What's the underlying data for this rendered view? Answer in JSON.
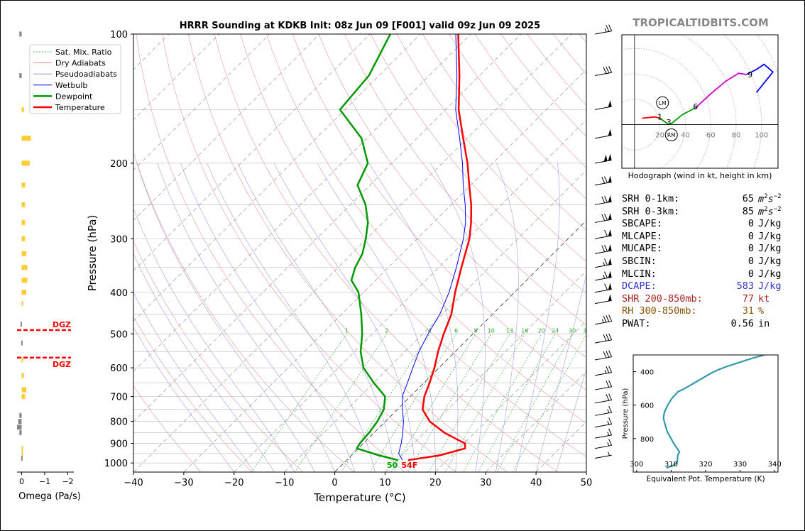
{
  "chart_data": [
    {
      "type": "line",
      "title": "HRRR Sounding at KDKB Init: 08z Jun 09 [F001] valid 09z Jun 09 2025",
      "xlabel": "Temperature (°C)",
      "ylabel": "Pressure (hPa)",
      "xlim": [
        -40,
        50
      ],
      "ylim": [
        1050,
        100
      ],
      "yscale": "log",
      "xticks": [
        -40,
        -30,
        -20,
        -10,
        0,
        10,
        20,
        30,
        40,
        50
      ],
      "yticks": [
        100,
        200,
        300,
        400,
        500,
        600,
        700,
        800,
        900,
        1000
      ],
      "mixing_ratio_labels": [
        "1",
        "2",
        "4",
        "6",
        "8",
        "10",
        "13",
        "16",
        "20",
        "24",
        "30",
        "36"
      ],
      "grid": true,
      "legend_position": "upper-left",
      "legend": [
        "Sat. Mix. Ratio",
        "Dry Adiabats",
        "Pseudoadiabats",
        "Wetbulb",
        "Dewpoint",
        "Temperature"
      ],
      "surface_dewpoint_label": "50",
      "surface_temperature_label": "54F",
      "series": [
        {
          "name": "Temperature",
          "color": "#ff0000",
          "p": [
            985,
            960,
            925,
            900,
            880,
            850,
            800,
            750,
            700,
            650,
            600,
            550,
            500,
            450,
            400,
            350,
            300,
            275,
            250,
            225,
            200,
            175,
            150,
            125,
            100
          ],
          "t": [
            12.2,
            17.5,
            21.2,
            20.2,
            17.7,
            14.0,
            8.8,
            5.0,
            2.8,
            1.1,
            -0.9,
            -3.4,
            -5.8,
            -8.2,
            -11.8,
            -15.5,
            -19.6,
            -22.5,
            -26.0,
            -30.3,
            -35.0,
            -40.8,
            -47.4,
            -54.0,
            -62.5
          ]
        },
        {
          "name": "Dewpoint",
          "color": "#009900",
          "p": [
            985,
            960,
            925,
            900,
            850,
            800,
            750,
            700,
            650,
            600,
            550,
            500,
            450,
            400,
            375,
            350,
            325,
            300,
            275,
            250,
            225,
            200,
            175,
            150,
            125,
            100
          ],
          "t": [
            10.2,
            5.5,
            -0.3,
            -0.7,
            -1.0,
            -1.6,
            -2.7,
            -5.0,
            -10.0,
            -15.0,
            -18.8,
            -22.0,
            -26.1,
            -31.0,
            -34.8,
            -36.6,
            -37.9,
            -40.2,
            -43.0,
            -47.0,
            -52.5,
            -54.8,
            -61.0,
            -71.0,
            -72.0,
            -76.0
          ]
        },
        {
          "name": "Wetbulb",
          "color": "#0000ff",
          "p": [
            985,
            950,
            900,
            850,
            800,
            750,
            700,
            650,
            600,
            550,
            500,
            450,
            400,
            350,
            300,
            275,
            250,
            225,
            200,
            175,
            150,
            125,
            100
          ],
          "t": [
            11.1,
            9.0,
            7.5,
            5.7,
            3.6,
            1.0,
            -1.6,
            -3.3,
            -5.2,
            -7.2,
            -8.9,
            -10.5,
            -13.0,
            -16.5,
            -20.8,
            -23.6,
            -27.2,
            -31.5,
            -36.0,
            -41.5,
            -48.0,
            -54.5,
            -63.0
          ]
        }
      ],
      "wind_barbs_kt": [
        {
          "p": 100,
          "spd": 25
        },
        {
          "p": 125,
          "spd": 30
        },
        {
          "p": 150,
          "spd": 50
        },
        {
          "p": 175,
          "spd": 50
        },
        {
          "p": 200,
          "spd": 100
        },
        {
          "p": 225,
          "spd": 70
        },
        {
          "p": 250,
          "spd": 70
        },
        {
          "p": 275,
          "spd": 70
        },
        {
          "p": 300,
          "spd": 60
        },
        {
          "p": 325,
          "spd": 70
        },
        {
          "p": 350,
          "spd": 65
        },
        {
          "p": 375,
          "spd": 65
        },
        {
          "p": 400,
          "spd": 60
        },
        {
          "p": 425,
          "spd": 50
        },
        {
          "p": 475,
          "spd": 35
        },
        {
          "p": 525,
          "spd": 30
        },
        {
          "p": 575,
          "spd": 30
        },
        {
          "p": 625,
          "spd": 25
        },
        {
          "p": 675,
          "spd": 20
        },
        {
          "p": 725,
          "spd": 20
        },
        {
          "p": 775,
          "spd": 15
        },
        {
          "p": 825,
          "spd": 15
        },
        {
          "p": 875,
          "spd": 15
        },
        {
          "p": 925,
          "spd": 15
        },
        {
          "p": 975,
          "spd": 5
        }
      ]
    },
    {
      "type": "bar",
      "xlabel": "Omega (Pa/s)",
      "xlim": [
        0.2,
        -2.2
      ],
      "xticks": [
        0,
        -1,
        -2
      ],
      "dgz_label": "DGZ",
      "dgz_pressures": [
        490,
        568
      ],
      "omega": [
        {
          "p": 100,
          "w": 0.1
        },
        {
          "p": 125,
          "w": 0.1
        },
        {
          "p": 150,
          "w": -0.1
        },
        {
          "p": 175,
          "w": -0.4
        },
        {
          "p": 200,
          "w": -0.35
        },
        {
          "p": 225,
          "w": -0.15
        },
        {
          "p": 250,
          "w": -0.15
        },
        {
          "p": 275,
          "w": -0.15
        },
        {
          "p": 300,
          "w": -0.15
        },
        {
          "p": 325,
          "w": -0.2
        },
        {
          "p": 350,
          "w": -0.25
        },
        {
          "p": 375,
          "w": -0.25
        },
        {
          "p": 400,
          "w": -0.2
        },
        {
          "p": 425,
          "w": -0.05
        },
        {
          "p": 475,
          "w": 0.05
        },
        {
          "p": 525,
          "w": 0.02
        },
        {
          "p": 575,
          "w": -0.02
        },
        {
          "p": 625,
          "w": -0.1
        },
        {
          "p": 675,
          "w": -0.2
        },
        {
          "p": 700,
          "w": -0.15
        },
        {
          "p": 775,
          "w": 0.1
        },
        {
          "p": 800,
          "w": 0.15
        },
        {
          "p": 825,
          "w": 0.2
        },
        {
          "p": 850,
          "w": 0.1
        },
        {
          "p": 925,
          "w": -0.05
        },
        {
          "p": 950,
          "w": -0.05
        },
        {
          "p": 975,
          "w": 0.02
        }
      ]
    },
    {
      "type": "line",
      "title": "Hodograph (wind in kt, height in km)",
      "xlim": [
        -10,
        113
      ],
      "ylim": [
        -34,
        70
      ],
      "xticks": [
        20,
        40,
        60,
        80,
        100
      ],
      "segments": [
        {
          "color": "#ff0000",
          "points": [
            [
              6,
              5
            ],
            [
              16,
              6
            ],
            [
              20,
              5
            ]
          ]
        },
        {
          "color": "#00a000",
          "points": [
            [
              20,
              5
            ],
            [
              24,
              2
            ],
            [
              28,
              0
            ],
            [
              38,
              8
            ],
            [
              48,
              13
            ]
          ]
        },
        {
          "color": "#cc00cc",
          "points": [
            [
              48,
              13
            ],
            [
              60,
              24
            ],
            [
              72,
              34
            ],
            [
              82,
              40
            ],
            [
              88,
              39
            ]
          ]
        },
        {
          "color": "#0000ff",
          "points": [
            [
              88,
              39
            ],
            [
              96,
              43
            ],
            [
              102,
              47
            ],
            [
              109,
              41
            ],
            [
              96,
              25
            ]
          ]
        }
      ],
      "height_labels": [
        {
          "label": "1",
          "u": 20,
          "v": 6
        },
        {
          "label": "3",
          "u": 27,
          "v": 2
        },
        {
          "label": "6",
          "u": 48,
          "v": 14
        },
        {
          "label": "9",
          "u": 91,
          "v": 39
        }
      ],
      "markers": [
        {
          "label": "LM",
          "u": 22,
          "v": 17
        },
        {
          "label": "RM",
          "u": 29,
          "v": -8
        }
      ]
    },
    {
      "type": "line",
      "xlabel": "Equivalent Pot. Temperature (K)",
      "ylabel": "Pressure (hPa)",
      "xlim": [
        299,
        341
      ],
      "ylim": [
        1000,
        300
      ],
      "xticks": [
        300,
        310,
        320,
        330,
        340
      ],
      "yticks": [
        400,
        600,
        800
      ],
      "series": [
        {
          "name": "theta_e",
          "color": "#3399aa",
          "p": [
            975,
            960,
            940,
            900,
            880,
            860,
            840,
            820,
            800,
            760,
            720,
            680,
            660,
            640,
            600,
            560,
            520,
            500,
            470,
            440,
            410,
            390,
            370,
            350,
            320,
            300
          ],
          "t": [
            308.6,
            310.7,
            311.8,
            311.9,
            312.4,
            311.8,
            311.1,
            310.5,
            310.0,
            308.9,
            308.3,
            307.8,
            307.9,
            308.1,
            309.0,
            310.2,
            312.0,
            314.0,
            316.5,
            319.0,
            321.5,
            323.5,
            326.0,
            329.0,
            333.5,
            337.0
          ]
        }
      ]
    }
  ],
  "brand": "TROPICALTIDBITS.COM",
  "params": [
    {
      "label": "SRH 0-1km:",
      "value": "65",
      "unit": "m2s-2",
      "color": "#000000"
    },
    {
      "label": "SRH 0-3km:",
      "value": "85",
      "unit": "m2s-2",
      "color": "#000000"
    },
    {
      "label": "SBCAPE:",
      "value": "0",
      "unit": "J/kg",
      "color": "#000000"
    },
    {
      "label": "MLCAPE:",
      "value": "0",
      "unit": "J/kg",
      "color": "#000000"
    },
    {
      "label": "MUCAPE:",
      "value": "0",
      "unit": "J/kg",
      "color": "#000000"
    },
    {
      "label": "SBCIN:",
      "value": "0",
      "unit": "J/kg",
      "color": "#000000"
    },
    {
      "label": "MLCIN:",
      "value": "0",
      "unit": "J/kg",
      "color": "#000000"
    },
    {
      "label": "DCAPE:",
      "value": "583",
      "unit": "J/kg",
      "color": "#3333cc"
    },
    {
      "label": "SHR 200-850mb:",
      "value": "77",
      "unit": "kt",
      "color": "#aa2222"
    },
    {
      "label": "RH 300-850mb:",
      "value": "31",
      "unit": "%",
      "color": "#885500"
    },
    {
      "label": "PWAT:",
      "value": "0.56",
      "unit": "in",
      "color": "#000000"
    }
  ]
}
